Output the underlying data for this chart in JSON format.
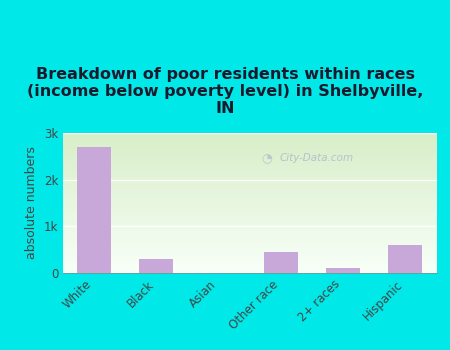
{
  "categories": [
    "White",
    "Black",
    "Asian",
    "Other race",
    "2+ races",
    "Hispanic"
  ],
  "values": [
    2700,
    300,
    0,
    450,
    100,
    600
  ],
  "bar_color": "#c8a8d8",
  "background_color": "#00e8e8",
  "plot_bg_color_topleft": "#d8eec8",
  "plot_bg_color_bottomright": "#f8fff8",
  "title": "Breakdown of poor residents within races\n(income below poverty level) in Shelbyville,\nIN",
  "title_color": "#1a1a2e",
  "ylabel": "absolute numbers",
  "ylim": [
    0,
    3000
  ],
  "yticks": [
    0,
    1000,
    2000,
    3000
  ],
  "ytick_labels": [
    "0",
    "1k",
    "2k",
    "3k"
  ],
  "watermark": "City-Data.com",
  "title_fontsize": 11.5,
  "ylabel_fontsize": 9,
  "tick_fontsize": 8.5
}
